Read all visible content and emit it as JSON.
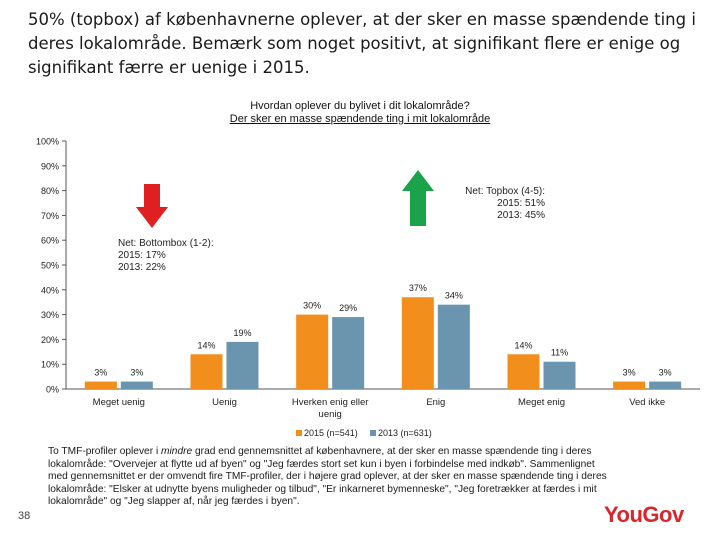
{
  "slide": {
    "title": "50% (topbox) af københavnerne oplever, at der sker en masse spændende ting i deres lokalområde. Bemærk som noget positivt, at signifikant flere er enige og signifikant færre er uenige i 2015.",
    "page_number": "38",
    "logo": "YouGov",
    "note_parts": [
      "To TMF-profiler oplever i ",
      "mindre",
      " grad end gennemsnittet af københavnere, at der sker en masse spændende ting i deres lokalområde: \"Overvejer at flytte ud af byen\" og \"Jeg færdes stort set kun i byen i forbindelse med indkøb\". Sammenlignet med gennemsnittet er der omvendt fire TMF-profiler, der i højere grad oplever, at der sker en masse spændende ting i deres lokalområde: \"Elsker at udnytte byens muligheder og tilbud\", \"Er inkarneret bymenneske\", \"Jeg foretrækker at færdes i mit lokalområde\" og \"Jeg slapper af, når jeg færdes i byen\"."
    ]
  },
  "chart_data": {
    "type": "bar",
    "title": "Hvordan oplever du bylivet i dit lokalområde?",
    "subtitle": "Der sker en masse spændende ting i mit lokalområde",
    "categories": [
      "Meget uenig",
      "Uenig",
      "Hverken enig eller uenig",
      "Enig",
      "Meget enig",
      "Ved ikke"
    ],
    "series": [
      {
        "name": "2015 (n=541)",
        "color": "#f28e1c",
        "values": [
          3,
          14,
          30,
          37,
          14,
          3
        ],
        "labels": [
          "3%",
          "14%",
          "30%",
          "37%",
          "14%",
          "3%"
        ]
      },
      {
        "name": "2013 (n=631)",
        "color": "#6b94ae",
        "values": [
          3,
          19,
          29,
          34,
          11,
          3
        ],
        "labels": [
          "3%",
          "19%",
          "29%",
          "34%",
          "11%",
          "3%"
        ]
      }
    ],
    "ylim": [
      0,
      100
    ],
    "yticks": [
      "0%",
      "10%",
      "20%",
      "30%",
      "40%",
      "50%",
      "60%",
      "70%",
      "80%",
      "90%",
      "100%"
    ],
    "grid": false,
    "legend_position": "bottom",
    "annotations": {
      "bottom": {
        "lines": [
          "Net: Bottombox (1-2):",
          "2015: 17%",
          "2013: 22%"
        ],
        "arrow": "down",
        "arrow_color": "#e02020"
      },
      "top": {
        "lines": [
          "Net: Topbox (4-5):",
          "2015: 51%",
          "2013: 45%"
        ],
        "arrow": "up",
        "arrow_color": "#1aa34a"
      }
    }
  }
}
